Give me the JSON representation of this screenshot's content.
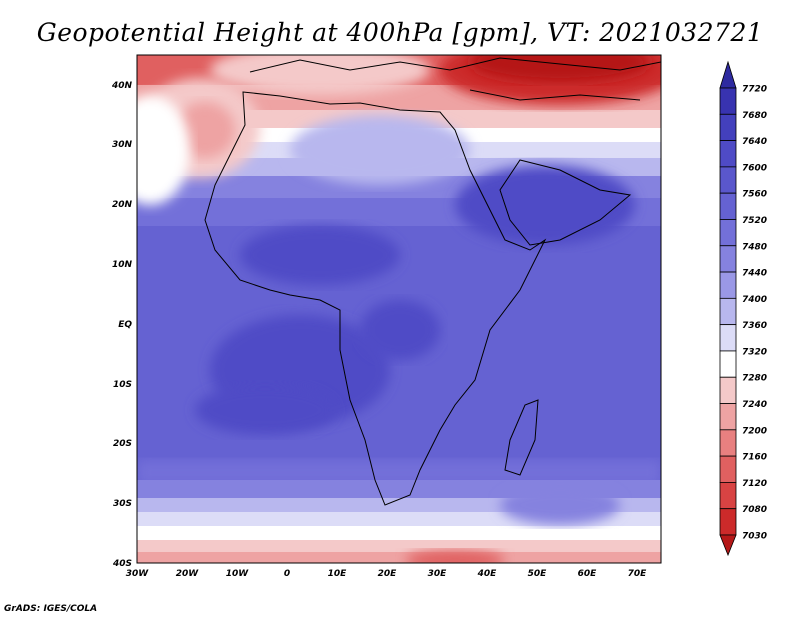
{
  "title": "Geopotential Height at 400hPa [gpm], VT: 2021032721",
  "credit": "GrADS: IGES/COLA",
  "x_ticks": [
    "30W",
    "20W",
    "10W",
    "0",
    "10E",
    "20E",
    "30E",
    "40E",
    "50E",
    "60E",
    "70E"
  ],
  "y_ticks": [
    "40N",
    "30N",
    "20N",
    "10N",
    "EQ",
    "10S",
    "20S",
    "30S",
    "40S"
  ],
  "colorbar": {
    "labels": [
      "7720",
      "7680",
      "7640",
      "7600",
      "7560",
      "7520",
      "7480",
      "7440",
      "7400",
      "7360",
      "7320",
      "7280",
      "7240",
      "7200",
      "7160",
      "7120",
      "7080",
      "7030"
    ],
    "colors": [
      "#2e2aa0",
      "#3833b0",
      "#4340bd",
      "#4f4bc6",
      "#5a57cc",
      "#6562d2",
      "#7370d9",
      "#8582df",
      "#9a98e6",
      "#b8b7ee",
      "#dcdcf7",
      "#ffffff",
      "#f4c9c9",
      "#eea3a3",
      "#e88080",
      "#e06060",
      "#d84343",
      "#cc2a2a",
      "#b51818"
    ]
  },
  "map_extent": {
    "lon": [
      -30,
      75
    ],
    "lat": [
      -40,
      45
    ]
  }
}
